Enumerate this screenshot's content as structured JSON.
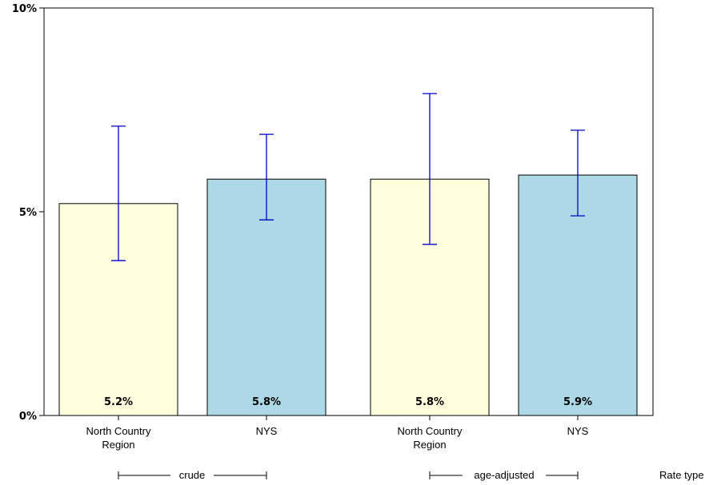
{
  "chart_data": {
    "type": "bar",
    "ylim": [
      0,
      10
    ],
    "y_ticks": [
      0,
      5,
      10
    ],
    "y_tick_labels": [
      "0%",
      "5%",
      "10%"
    ],
    "grid": false,
    "xlabel": "Rate type",
    "groups": [
      {
        "label": "crude",
        "categories": [
          "North Country Region",
          "NYS"
        ]
      },
      {
        "label": "age-adjusted",
        "categories": [
          "North Country Region",
          "NYS"
        ]
      }
    ],
    "bars": [
      {
        "category": "North Country Region",
        "group": "crude",
        "value": 5.2,
        "ci_low": 3.8,
        "ci_high": 7.1,
        "label": "5.2%",
        "color": "#ffffdd"
      },
      {
        "category": "NYS",
        "group": "crude",
        "value": 5.8,
        "ci_low": 4.8,
        "ci_high": 6.9,
        "label": "5.8%",
        "color": "#add8e6"
      },
      {
        "category": "North Country Region",
        "group": "age-adjusted",
        "value": 5.8,
        "ci_low": 4.2,
        "ci_high": 7.9,
        "label": "5.8%",
        "color": "#ffffdd"
      },
      {
        "category": "NYS",
        "group": "age-adjusted",
        "value": 5.9,
        "ci_low": 4.9,
        "ci_high": 7.0,
        "label": "5.9%",
        "color": "#add8e6"
      }
    ],
    "error_bar_color": "#0000cc"
  }
}
